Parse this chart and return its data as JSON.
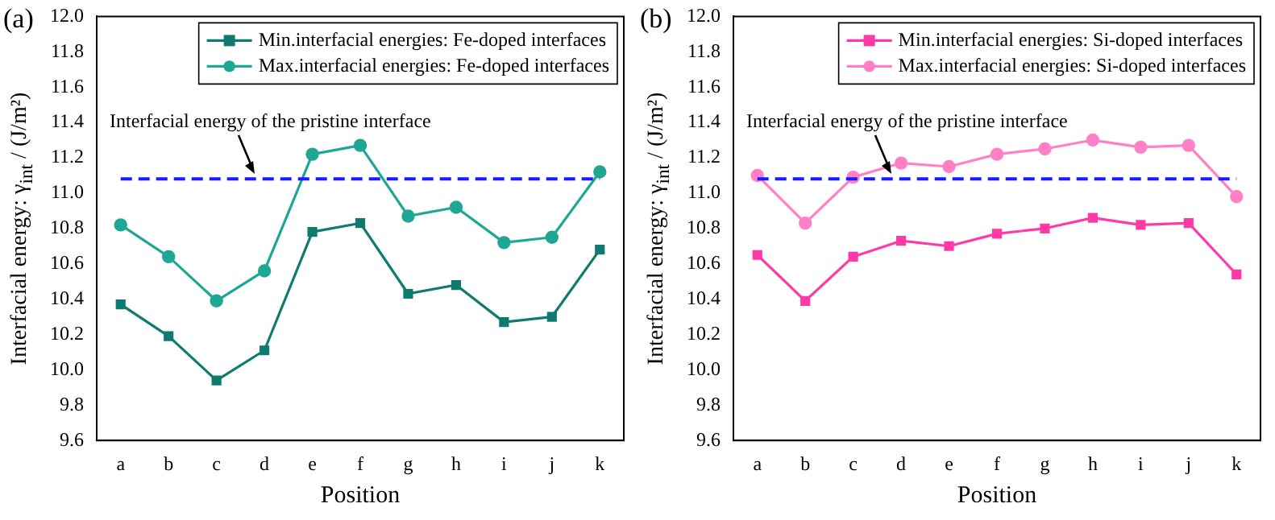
{
  "chart_data": [
    {
      "type": "line",
      "title": "(a)",
      "xlabel": "Position",
      "ylabel": "Interfacial energy: γ$_{int}$ / (J/m²)",
      "categories": [
        "a",
        "b",
        "c",
        "d",
        "e",
        "f",
        "g",
        "h",
        "i",
        "j",
        "k"
      ],
      "series": [
        {
          "name": "Min.interfacial energies: Fe-doped interfaces",
          "color": "#0f7b70",
          "marker": "square",
          "values": [
            10.37,
            10.19,
            9.94,
            10.11,
            10.78,
            10.83,
            10.43,
            10.48,
            10.27,
            10.3,
            10.68
          ]
        },
        {
          "name": "Max.interfacial energies: Fe-doped interfaces",
          "color": "#1fa796",
          "marker": "circle",
          "values": [
            10.82,
            10.64,
            10.39,
            10.56,
            11.22,
            11.27,
            10.87,
            10.92,
            10.72,
            10.75,
            11.12
          ]
        }
      ],
      "ylim": [
        9.6,
        12.0
      ],
      "yticks": [
        9.6,
        9.8,
        {
          "value": 10,
          "label": "10.0"
        },
        10.2,
        10.4,
        10.6,
        10.8,
        {
          "value": 11,
          "label": "11.0"
        },
        11.2,
        11.4,
        11.6,
        11.8,
        {
          "value": 12,
          "label": "12.0"
        }
      ],
      "ref_lines": [
        {
          "axis": "y",
          "value": 11.08,
          "label": "Interfacial energy of the pristine interface",
          "color": "#1a1aff",
          "line_style": "dashed"
        }
      ],
      "grid": false,
      "legend": "top right",
      "line_style": "solid"
    },
    {
      "type": "line",
      "title": "(b)",
      "xlabel": "Position",
      "ylabel": "Interfacial energy: γ$_{int}$ / (J/m²)",
      "categories": [
        "a",
        "b",
        "c",
        "d",
        "e",
        "f",
        "g",
        "h",
        "i",
        "j",
        "k"
      ],
      "series": [
        {
          "name": "Min.interfacial energies: Si-doped interfaces",
          "color": "#ff3aa6",
          "marker": "square",
          "values": [
            10.65,
            10.39,
            10.64,
            10.73,
            10.7,
            10.77,
            10.8,
            10.86,
            10.82,
            10.83,
            10.54
          ]
        },
        {
          "name": "Max.interfacial energies: Si-doped interfaces",
          "color": "#ff80c6",
          "marker": "circle",
          "values": [
            11.1,
            10.83,
            11.09,
            11.17,
            11.15,
            11.22,
            11.25,
            11.3,
            11.26,
            11.27,
            10.98
          ]
        }
      ],
      "ylim": [
        9.6,
        12.0
      ],
      "yticks": [
        9.6,
        9.8,
        {
          "value": 10,
          "label": "10.0"
        },
        10.2,
        10.4,
        10.6,
        10.8,
        {
          "value": 11,
          "label": "11.0"
        },
        11.2,
        11.4,
        11.6,
        11.8,
        {
          "value": 12,
          "label": "12.0"
        }
      ],
      "ref_lines": [
        {
          "axis": "y",
          "value": 11.08,
          "label": "Interfacial energy of the pristine interface",
          "color": "#1a1aff",
          "line_style": "dashed"
        }
      ],
      "grid": false,
      "legend": "top right",
      "line_style": "solid"
    }
  ]
}
